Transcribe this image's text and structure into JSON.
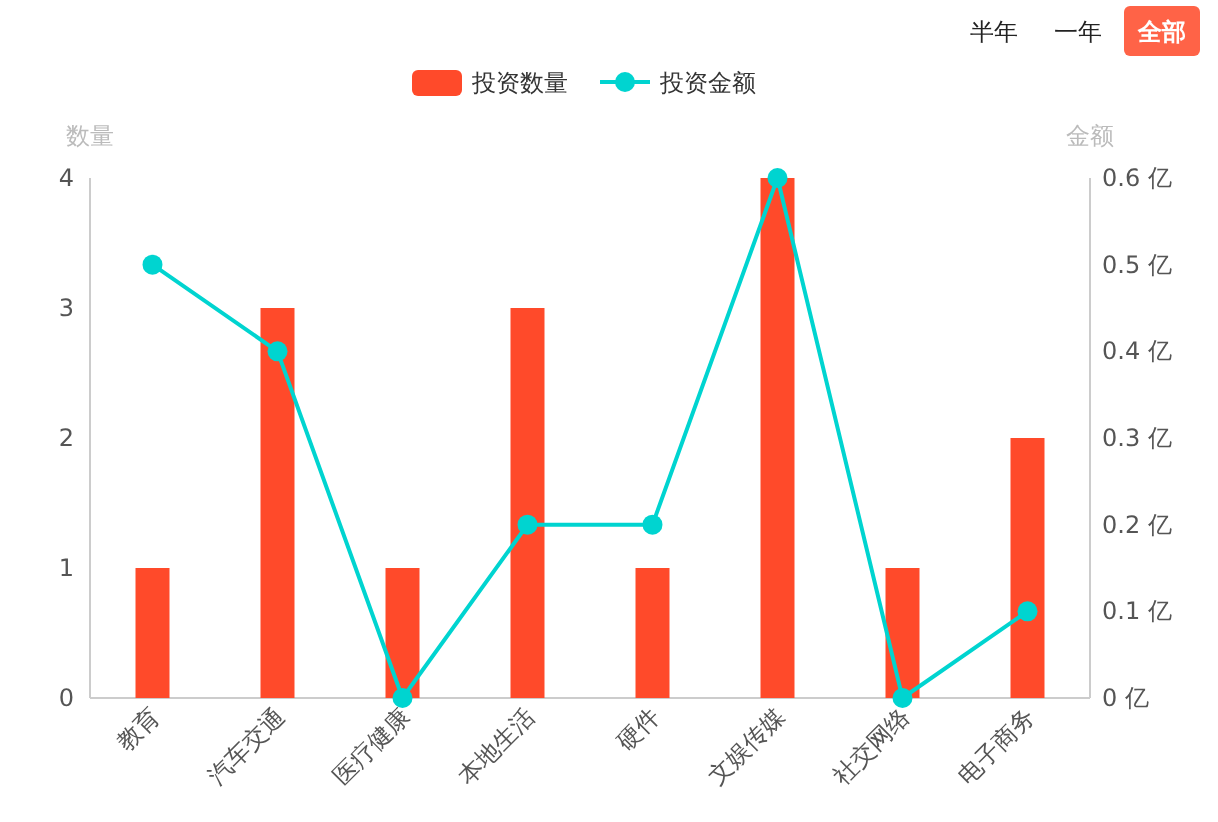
{
  "chart_data": {
    "type": "bar",
    "categories": [
      "教育",
      "汽车交通",
      "医疗健康",
      "本地生活",
      "硬件",
      "文娱传媒",
      "社交网络",
      "电子商务"
    ],
    "series": [
      {
        "name": "投资数量",
        "color": "#ff4a2a",
        "values": [
          1,
          3,
          1,
          3,
          1,
          4,
          1,
          2
        ]
      },
      {
        "name": "投资金额",
        "type": "line",
        "axis": "y2",
        "color": "#00d4d0",
        "marker": "circle",
        "values": [
          0.5,
          0.4,
          0,
          0.2,
          0.2,
          0.6,
          0,
          0.1
        ]
      }
    ],
    "ylabel": "数量",
    "y2label": "金额",
    "ylim": [
      0,
      4
    ],
    "yticks": [
      0,
      1,
      2,
      3,
      4
    ],
    "y2lim": [
      0,
      0.6
    ],
    "y2ticks": [
      {
        "value": 0,
        "label": "0 亿"
      },
      {
        "value": 0.1,
        "label": "0.1 亿"
      },
      {
        "value": 0.2,
        "label": "0.2 亿"
      },
      {
        "value": 0.3,
        "label": "0.3 亿"
      },
      {
        "value": 0.4,
        "label": "0.4 亿"
      },
      {
        "value": 0.5,
        "label": "0.5 亿"
      },
      {
        "value": 0.6,
        "label": "0.6 亿"
      }
    ],
    "legend": "top",
    "annotations": [
      "半年",
      "一年",
      "全部"
    ]
  }
}
